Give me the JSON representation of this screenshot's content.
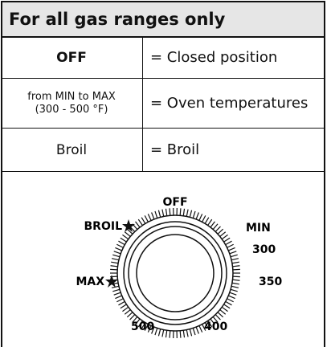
{
  "header": {
    "title": "For all gas ranges only"
  },
  "table": {
    "rows": [
      {
        "setting": "OFF",
        "meaning": "= Closed position"
      },
      {
        "setting": [
          "from MIN to MAX",
          "(300 - 500 °F)"
        ],
        "meaning": "= Oven temperatures"
      },
      {
        "setting": "Broil",
        "meaning": "= Broil"
      }
    ]
  },
  "diagram": {
    "labels": [
      "OFF",
      "MIN",
      "300",
      "350",
      "400",
      "500",
      "MAX",
      "BROIL"
    ]
  }
}
